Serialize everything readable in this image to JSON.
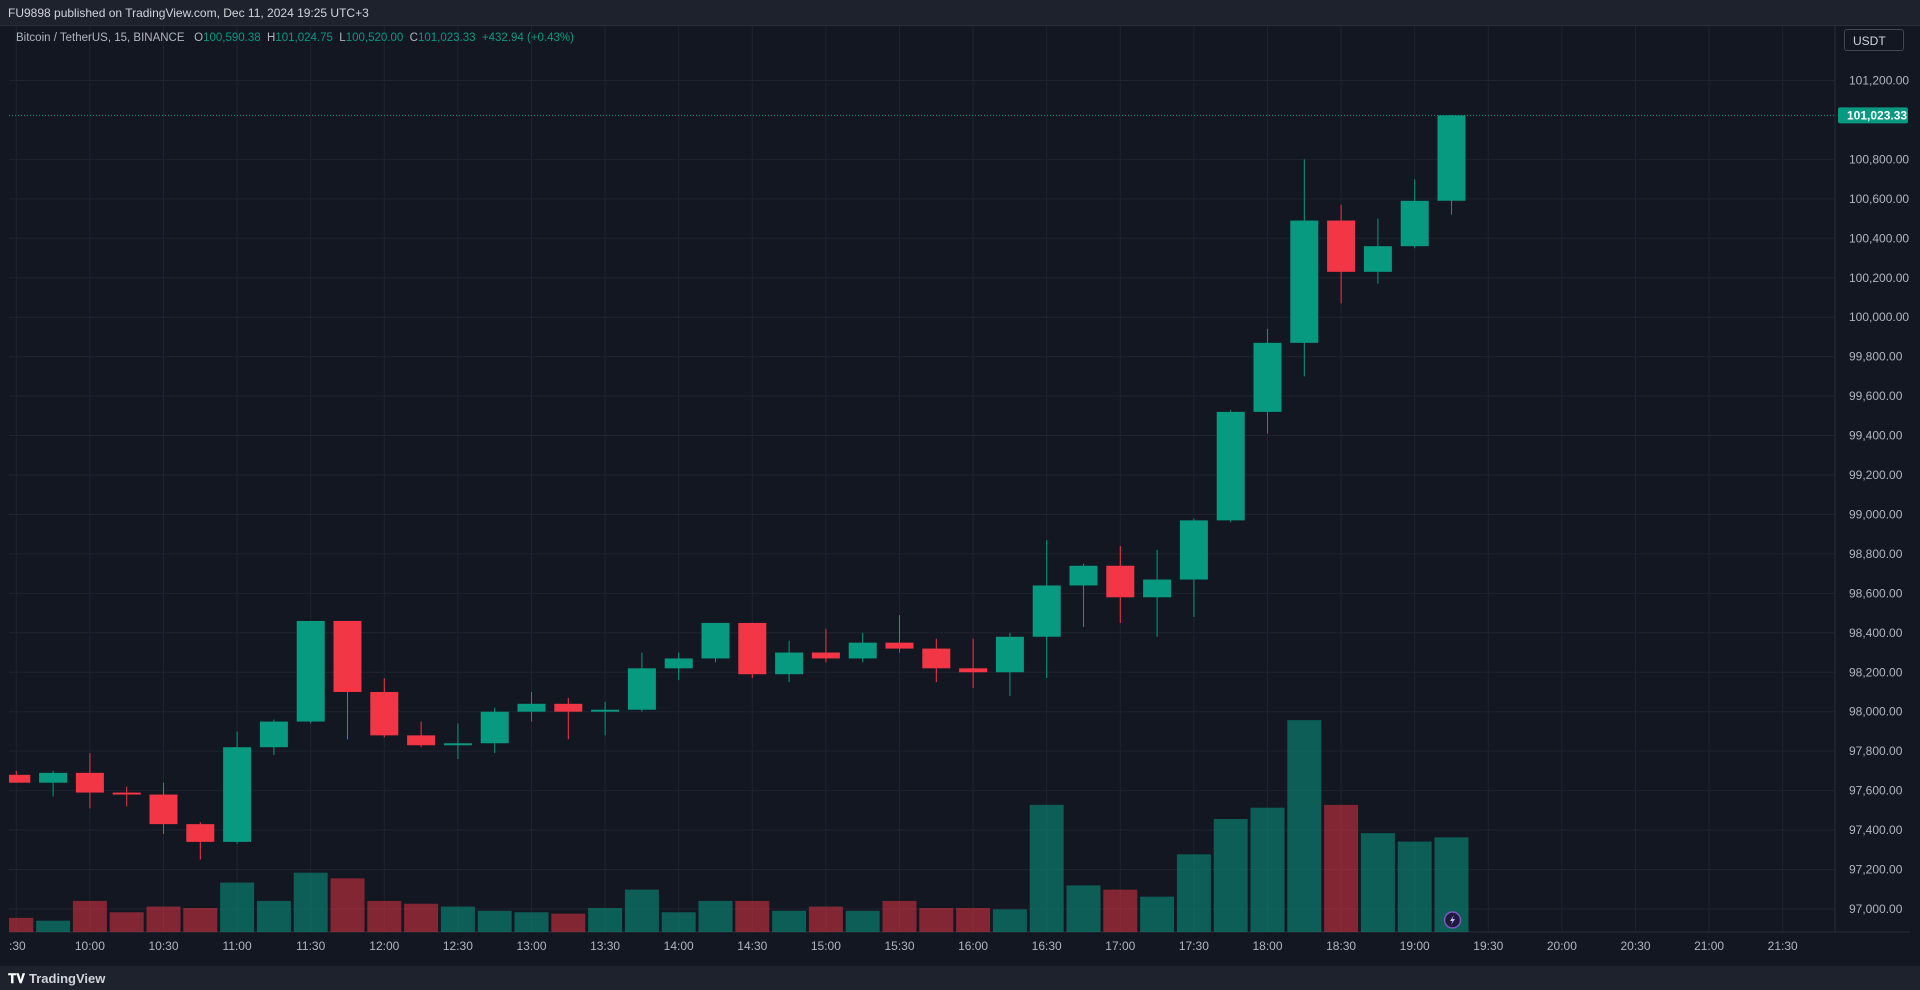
{
  "header": {
    "published": "FU9898 published on TradingView.com, Dec 11, 2024 19:25 UTC+3"
  },
  "legend": {
    "symbol": "Bitcoin / TetherUS, 15, BINANCE",
    "o_label": "O",
    "o": "100,590.38",
    "h_label": "H",
    "h": "101,024.75",
    "l_label": "L",
    "l": "100,520.00",
    "c_label": "C",
    "c": "101,023.33",
    "change": "+432.94 (+0.43%)"
  },
  "unit_button": "USDT",
  "footer": {
    "brand": "TradingView",
    "brand_icon": "tradingview-logo-icon"
  },
  "colors": {
    "up": "#089981",
    "down": "#f23645",
    "background": "#131722",
    "grid": "#1f2330",
    "text": "#b2b5be"
  },
  "chart_data": {
    "type": "candlestick",
    "title": "",
    "ylim": [
      96900,
      101300
    ],
    "y_ticks": [
      "101,200.00",
      "100,800.00",
      "100,600.00",
      "100,400.00",
      "100,200.00",
      "100,000.00",
      "99,800.00",
      "99,600.00",
      "99,400.00",
      "99,200.00",
      "99,000.00",
      "98,800.00",
      "98,600.00",
      "98,400.00",
      "98,200.00",
      "98,000.00",
      "97,800.00",
      "97,600.00",
      "97,400.00",
      "97,200.00",
      "97,000.00"
    ],
    "y_tick_values": [
      101200,
      100800,
      100600,
      100400,
      100200,
      100000,
      99800,
      99600,
      99400,
      99200,
      99000,
      98800,
      98600,
      98400,
      98200,
      98000,
      97800,
      97600,
      97400,
      97200,
      97000
    ],
    "x_ticks": [
      ":30",
      "10:00",
      "10:30",
      "11:00",
      "11:30",
      "12:00",
      "12:30",
      "13:00",
      "13:30",
      "14:00",
      "14:30",
      "15:00",
      "15:30",
      "16:00",
      "16:30",
      "17:00",
      "17:30",
      "18:00",
      "18:30",
      "19:00",
      "19:30",
      "20:00",
      "20:30",
      "21:00",
      "21:30"
    ],
    "last_price_label": "101,023.33",
    "last_price": 101023.33,
    "candles": [
      {
        "t": "09:30",
        "o": 97680,
        "h": 97700,
        "l": 97640,
        "c": 97640
      },
      {
        "t": "09:45",
        "o": 97640,
        "h": 97700,
        "l": 97570,
        "c": 97690
      },
      {
        "t": "10:00",
        "o": 97690,
        "h": 97790,
        "l": 97510,
        "c": 97590
      },
      {
        "t": "10:15",
        "o": 97590,
        "h": 97620,
        "l": 97520,
        "c": 97580
      },
      {
        "t": "10:30",
        "o": 97580,
        "h": 97640,
        "l": 97380,
        "c": 97430
      },
      {
        "t": "10:45",
        "o": 97430,
        "h": 97440,
        "l": 97250,
        "c": 97340
      },
      {
        "t": "11:00",
        "o": 97340,
        "h": 97900,
        "l": 97330,
        "c": 97820
      },
      {
        "t": "11:15",
        "o": 97820,
        "h": 97960,
        "l": 97780,
        "c": 97950
      },
      {
        "t": "11:30",
        "o": 97950,
        "h": 98460,
        "l": 97940,
        "c": 98460
      },
      {
        "t": "11:45",
        "o": 98460,
        "h": 98460,
        "l": 97860,
        "c": 98100
      },
      {
        "t": "12:00",
        "o": 98100,
        "h": 98170,
        "l": 97870,
        "c": 97880
      },
      {
        "t": "12:15",
        "o": 97880,
        "h": 97950,
        "l": 97820,
        "c": 97830
      },
      {
        "t": "12:30",
        "o": 97830,
        "h": 97940,
        "l": 97760,
        "c": 97840
      },
      {
        "t": "12:45",
        "o": 97840,
        "h": 98020,
        "l": 97790,
        "c": 98000
      },
      {
        "t": "13:00",
        "o": 98000,
        "h": 98100,
        "l": 97950,
        "c": 98040
      },
      {
        "t": "13:15",
        "o": 98040,
        "h": 98070,
        "l": 97860,
        "c": 98000
      },
      {
        "t": "13:30",
        "o": 98000,
        "h": 98050,
        "l": 97880,
        "c": 98010
      },
      {
        "t": "13:45",
        "o": 98010,
        "h": 98300,
        "l": 98000,
        "c": 98220
      },
      {
        "t": "14:00",
        "o": 98220,
        "h": 98300,
        "l": 98160,
        "c": 98270
      },
      {
        "t": "14:15",
        "o": 98270,
        "h": 98450,
        "l": 98250,
        "c": 98450
      },
      {
        "t": "14:30",
        "o": 98450,
        "h": 98450,
        "l": 98170,
        "c": 98190
      },
      {
        "t": "14:45",
        "o": 98190,
        "h": 98360,
        "l": 98150,
        "c": 98300
      },
      {
        "t": "15:00",
        "o": 98300,
        "h": 98420,
        "l": 98250,
        "c": 98270
      },
      {
        "t": "15:15",
        "o": 98270,
        "h": 98400,
        "l": 98250,
        "c": 98350
      },
      {
        "t": "15:30",
        "o": 98350,
        "h": 98490,
        "l": 98300,
        "c": 98320
      },
      {
        "t": "15:45",
        "o": 98320,
        "h": 98370,
        "l": 98150,
        "c": 98220
      },
      {
        "t": "16:00",
        "o": 98220,
        "h": 98370,
        "l": 98120,
        "c": 98200
      },
      {
        "t": "16:15",
        "o": 98200,
        "h": 98400,
        "l": 98080,
        "c": 98380
      },
      {
        "t": "16:30",
        "o": 98380,
        "h": 98870,
        "l": 98170,
        "c": 98640
      },
      {
        "t": "16:45",
        "o": 98640,
        "h": 98750,
        "l": 98430,
        "c": 98740
      },
      {
        "t": "17:00",
        "o": 98740,
        "h": 98840,
        "l": 98450,
        "c": 98580
      },
      {
        "t": "17:15",
        "o": 98580,
        "h": 98820,
        "l": 98380,
        "c": 98670
      },
      {
        "t": "17:30",
        "o": 98670,
        "h": 98980,
        "l": 98480,
        "c": 98970
      },
      {
        "t": "17:45",
        "o": 98970,
        "h": 99530,
        "l": 98960,
        "c": 99520
      },
      {
        "t": "18:00",
        "o": 99520,
        "h": 99940,
        "l": 99410,
        "c": 99870
      },
      {
        "t": "18:15",
        "o": 99870,
        "h": 100800,
        "l": 99700,
        "c": 100490
      },
      {
        "t": "18:30",
        "o": 100490,
        "h": 100570,
        "l": 100070,
        "c": 100230
      },
      {
        "t": "18:45",
        "o": 100230,
        "h": 100500,
        "l": 100170,
        "c": 100360
      },
      {
        "t": "19:00",
        "o": 100360,
        "h": 100700,
        "l": 100350,
        "c": 100590
      },
      {
        "t": "19:15",
        "o": 100590.38,
        "h": 101024.75,
        "l": 100520,
        "c": 101023.33
      }
    ],
    "volume": [
      10,
      8,
      22,
      14,
      18,
      17,
      35,
      22,
      42,
      38,
      22,
      20,
      18,
      15,
      14,
      13,
      17,
      30,
      14,
      22,
      22,
      15,
      18,
      15,
      22,
      17,
      17,
      16,
      90,
      33,
      30,
      25,
      55,
      80,
      88,
      150,
      90,
      70,
      64,
      67
    ],
    "volume_scale_max": 160
  }
}
